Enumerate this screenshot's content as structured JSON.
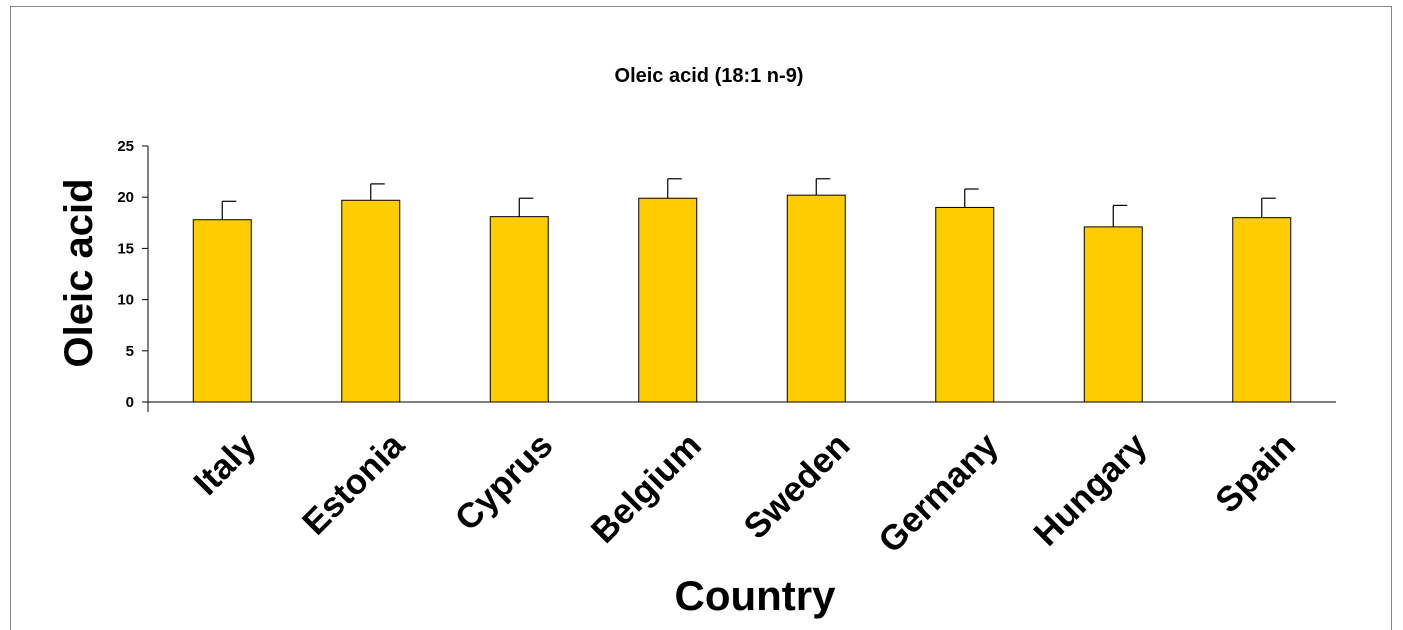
{
  "chart_data": {
    "type": "bar",
    "title": "Oleic acid (18:1 n-9)",
    "xlabel": "Country",
    "ylabel": "Oleic acid",
    "categories": [
      "Italy",
      "Estonia",
      "Cyprus",
      "Belgium",
      "Sweden",
      "Germany",
      "Hungary",
      "Spain"
    ],
    "values": [
      17.8,
      19.7,
      18.1,
      19.9,
      20.2,
      19.0,
      17.1,
      18.0
    ],
    "errors": [
      1.8,
      1.6,
      1.8,
      1.9,
      1.6,
      1.8,
      2.1,
      1.9
    ],
    "ylim": [
      0,
      25
    ],
    "yticks": [
      "0",
      "5",
      "10",
      "15",
      "20",
      "25"
    ],
    "ytick_values": [
      0,
      5,
      10,
      15,
      20,
      25
    ],
    "bar_color": "#FFCC00",
    "grid": false,
    "legend": "none"
  }
}
